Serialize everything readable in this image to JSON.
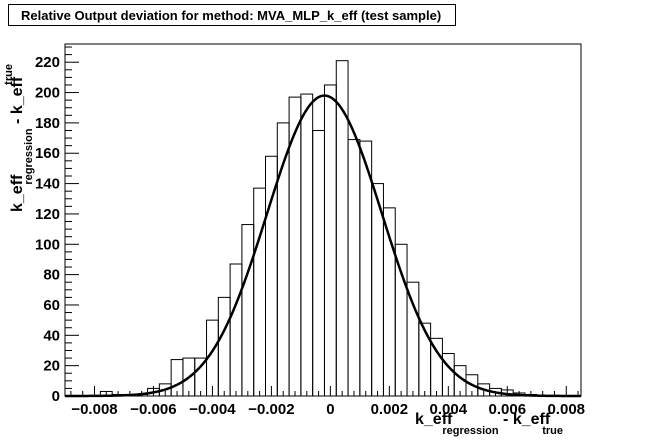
{
  "chart_data": {
    "type": "bar",
    "title": "Relative Output deviation for method: MVA_MLP_k_eff (test sample)",
    "xlabel": {
      "main": "k_eff",
      "sub1": "regression",
      "mid": " - k_eff",
      "sub2": "true"
    },
    "ylabel": {
      "main": "k_eff",
      "sub1": "regression",
      "mid": " - k_eff",
      "sub2": "true"
    },
    "xlim": [
      -0.009,
      0.0085
    ],
    "ylim": [
      0,
      232
    ],
    "x_ticks": [
      -0.008,
      -0.006,
      -0.004,
      -0.002,
      0,
      0.002,
      0.004,
      0.006,
      0.008
    ],
    "x_tick_labels": [
      "−0.008",
      "−0.006",
      "−0.004",
      "−0.002",
      "0",
      "0.002",
      "0.004",
      "0.006",
      "0.008"
    ],
    "y_ticks": [
      0,
      20,
      40,
      60,
      80,
      100,
      120,
      140,
      160,
      180,
      200,
      220
    ],
    "y_tick_labels": [
      "0",
      "20",
      "40",
      "60",
      "80",
      "100",
      "120",
      "140",
      "160",
      "180",
      "200",
      "220"
    ],
    "histogram": {
      "bin_edges": [
        -0.009,
        -0.0086,
        -0.0082,
        -0.0078,
        -0.0074,
        -0.007,
        -0.0066,
        -0.0062,
        -0.0058,
        -0.0054,
        -0.005,
        -0.0046,
        -0.0042,
        -0.0038,
        -0.0034,
        -0.003,
        -0.0026,
        -0.0022,
        -0.0018,
        -0.0014,
        -0.001,
        -0.0006,
        -0.0002,
        0.0002,
        0.0006,
        0.001,
        0.0014,
        0.0018,
        0.0022,
        0.0026,
        0.003,
        0.0034,
        0.0038,
        0.0042,
        0.0046,
        0.005,
        0.0054,
        0.0058,
        0.0062,
        0.0066,
        0.007,
        0.0074,
        0.0078,
        0.0082,
        0.0085
      ],
      "counts": [
        0,
        0,
        0,
        3,
        1,
        0,
        1,
        5,
        8,
        24,
        25,
        25,
        50,
        65,
        87,
        113,
        137,
        158,
        180,
        197,
        199,
        175,
        205,
        221,
        169,
        168,
        140,
        124,
        100,
        75,
        48,
        38,
        28,
        20,
        14,
        8,
        5,
        4,
        2,
        1,
        0,
        0,
        0,
        0
      ]
    },
    "fit": {
      "type": "gaussian",
      "amplitude": 198,
      "mean": -0.0002,
      "sigma": 0.00195
    },
    "grid": false,
    "legend": "none"
  }
}
